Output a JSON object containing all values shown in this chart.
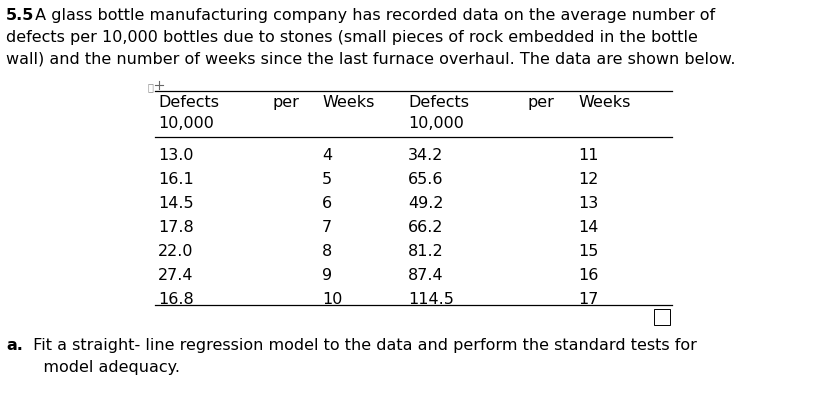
{
  "bold_prefix": "5.5",
  "intro_line1": " A glass bottle manufacturing company has recorded data on the average number of",
  "intro_line2": "defects per 10,000 bottles due to stones (small pieces of rock embedded in the bottle",
  "intro_line3": "wall) and the number of weeks since the last furnace overhaul. The data are shown below.",
  "col1_header_line1": "Defects",
  "col1_header_line2": "10,000",
  "col2_header": "per",
  "col3_header": "Weeks",
  "col4_header_line1": "Defects",
  "col4_header_line2": "10,000",
  "col5_header": "per",
  "col6_header": "Weeks",
  "left_defects": [
    "13.0",
    "16.1",
    "14.5",
    "17.8",
    "22.0",
    "27.4",
    "16.8"
  ],
  "left_weeks": [
    "4",
    "5",
    "6",
    "7",
    "8",
    "9",
    "10"
  ],
  "right_defects": [
    "34.2",
    "65.6",
    "49.2",
    "66.2",
    "81.2",
    "87.4",
    "114.5"
  ],
  "right_weeks": [
    "11",
    "12",
    "13",
    "14",
    "15",
    "16",
    "17"
  ],
  "footer_bold": "a.",
  "footer_text1": " Fit a straight- line regression model to the data and perform the standard tests for",
  "footer_text2": "   model adequacy.",
  "bg_color": "#ffffff",
  "text_color": "#000000",
  "font_size_body": 11.5,
  "font_size_table": 11.5
}
